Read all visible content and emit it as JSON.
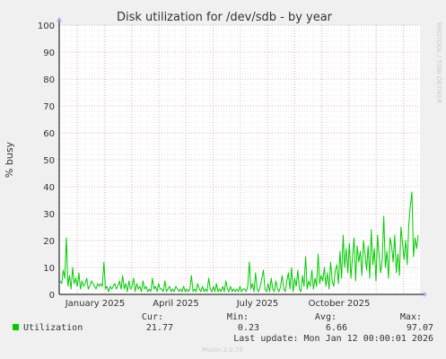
{
  "chart_data": {
    "type": "line",
    "title": "Disk utilization for /dev/sdb - by year",
    "ylabel": "% busy",
    "ylim": [
      0,
      100
    ],
    "yticks": [
      0,
      10,
      20,
      30,
      40,
      50,
      60,
      70,
      80,
      90,
      100
    ],
    "xticks": [
      "January 2025",
      "April 2025",
      "July 2025",
      "October 2025"
    ],
    "grid": true,
    "watermark": "RRDTOOL / TOBI OETIKER",
    "series": [
      {
        "name": "Utilization",
        "color": "#00cc00",
        "values": [
          5,
          4,
          9,
          6,
          21,
          3,
          7,
          2,
          10,
          4,
          6,
          3,
          8,
          2,
          5,
          3,
          4,
          6,
          2,
          3,
          5,
          4,
          3,
          2,
          4,
          3,
          4,
          3,
          12,
          2,
          3,
          1,
          3,
          2,
          3,
          4,
          2,
          3,
          5,
          2,
          7,
          2,
          4,
          1,
          5,
          2,
          3,
          6,
          1,
          4,
          2,
          3,
          1,
          5,
          2,
          3,
          1,
          2,
          1,
          6,
          2,
          3,
          1,
          4,
          2,
          2,
          1,
          5,
          1,
          2,
          3,
          1,
          2,
          1,
          3,
          2,
          1,
          2,
          1,
          3,
          1,
          2,
          1,
          2,
          7,
          1,
          2,
          1,
          4,
          2,
          1,
          3,
          1,
          2,
          1,
          6,
          2,
          1,
          3,
          1,
          4,
          1,
          2,
          1,
          3,
          1,
          5,
          2,
          1,
          3,
          1,
          2,
          1,
          2,
          1,
          3,
          1,
          2,
          2,
          1,
          3,
          12,
          2,
          4,
          1,
          8,
          2,
          1,
          3,
          6,
          9,
          2,
          1,
          4,
          1,
          6,
          2,
          1,
          5,
          2,
          1,
          3,
          7,
          2,
          1,
          5,
          8,
          2,
          10,
          1,
          6,
          3,
          9,
          2,
          1,
          7,
          3,
          14,
          2,
          5,
          3,
          9,
          2,
          6,
          3,
          15,
          4,
          7,
          5,
          10,
          3,
          8,
          2,
          12,
          5,
          3,
          9,
          11,
          4,
          16,
          6,
          22,
          10,
          17,
          8,
          19,
          6,
          14,
          21,
          5,
          18,
          12,
          16,
          7,
          20,
          15,
          9,
          18,
          6,
          24,
          11,
          17,
          5,
          22,
          14,
          8,
          13,
          29,
          10,
          16,
          6,
          21,
          18,
          12,
          22,
          8,
          15,
          7,
          25,
          19,
          13,
          20,
          11,
          26,
          33,
          38,
          14,
          21,
          17,
          22
        ]
      }
    ]
  },
  "legend": {
    "label": "Utilization",
    "cur_header": "Cur:",
    "min_header": "Min:",
    "avg_header": "Avg:",
    "max_header": "Max:",
    "cur": "21.77",
    "min": "0.23",
    "avg": "6.66",
    "max": "97.07"
  },
  "last_update": "Last update: Mon Jan 12 00:00:01 2026",
  "version": "Munin 2.0.76"
}
